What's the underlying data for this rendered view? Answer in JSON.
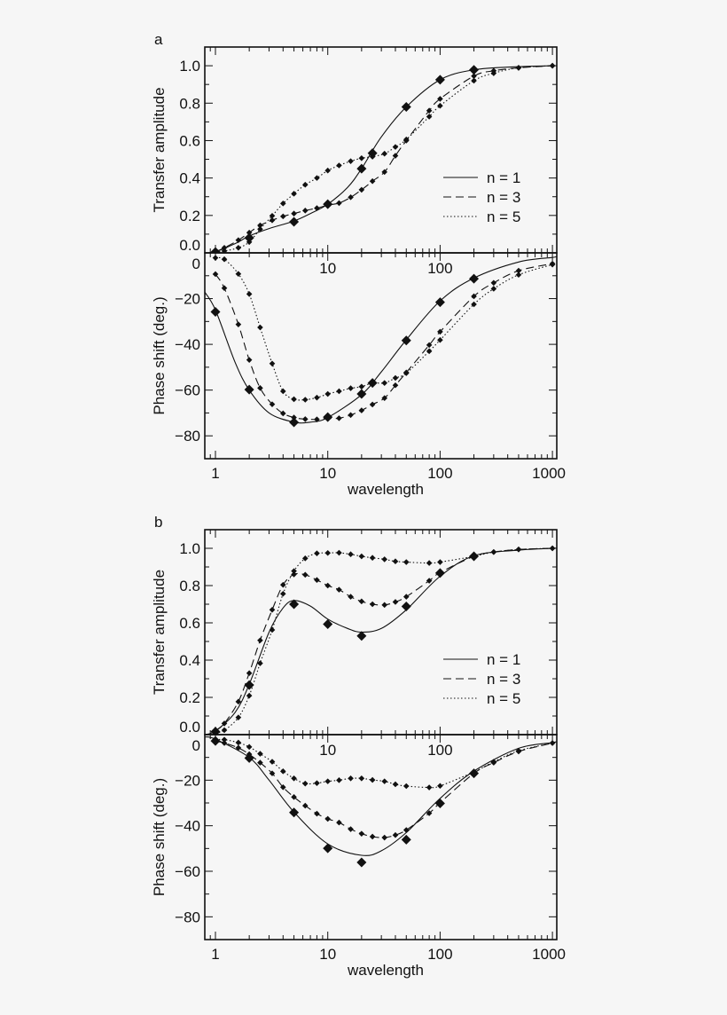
{
  "chart_data": [
    {
      "panel": "a",
      "type": "line",
      "xscale": "log",
      "xlabel": "",
      "ylabel": "Transfer amplitude",
      "xlim": [
        0.8,
        1100
      ],
      "ylim": [
        0,
        1.1
      ],
      "xticks": [
        "10",
        "100"
      ],
      "yticks": [
        "0.0",
        "0.2",
        "0.4",
        "0.6",
        "0.8",
        "1.0"
      ],
      "ytick_values": [
        0,
        0.2,
        0.4,
        0.6,
        0.8,
        1.0
      ],
      "legend": "bottom-right",
      "series": [
        {
          "name": "n = 1",
          "style": "solid",
          "x": [
            1,
            2,
            5,
            10,
            20,
            25,
            50,
            100,
            200
          ],
          "y": [
            0.005,
            0.08,
            0.166,
            0.26,
            0.45,
            0.533,
            0.78,
            0.925,
            0.978
          ],
          "curve_x": [
            0.8,
            1,
            1.5,
            2,
            3,
            5,
            7,
            10,
            15,
            20,
            30,
            50,
            100,
            200,
            500,
            1000,
            1100
          ],
          "curve_y": [
            0,
            0.005,
            0.05,
            0.09,
            0.13,
            0.17,
            0.21,
            0.26,
            0.35,
            0.45,
            0.62,
            0.78,
            0.925,
            0.978,
            0.995,
            1.0,
            1.0
          ]
        },
        {
          "name": "n = 3",
          "style": "dashed",
          "x": [
            1,
            1.2,
            1.6,
            2,
            2.5,
            3.2,
            4,
            5,
            6.3,
            8,
            10,
            12.6,
            16,
            20,
            25,
            32,
            40,
            50,
            80,
            100,
            200,
            300,
            500,
            1000
          ],
          "y": [
            0.005,
            0.027,
            0.068,
            0.108,
            0.147,
            0.174,
            0.195,
            0.21,
            0.226,
            0.239,
            0.255,
            0.266,
            0.297,
            0.337,
            0.383,
            0.432,
            0.519,
            0.6,
            0.76,
            0.823,
            0.945,
            0.973,
            0.989,
            1.0
          ]
        },
        {
          "name": "n = 5",
          "style": "dotted",
          "x": [
            1,
            1.2,
            1.6,
            2,
            2.5,
            3.2,
            4,
            5,
            6.3,
            8,
            10,
            12.6,
            16,
            20,
            25,
            32,
            40,
            50,
            80,
            100,
            200,
            300,
            500,
            1000
          ],
          "y": [
            0.005,
            0.01,
            0.027,
            0.058,
            0.127,
            0.198,
            0.264,
            0.316,
            0.364,
            0.4,
            0.44,
            0.467,
            0.49,
            0.506,
            0.514,
            0.53,
            0.566,
            0.606,
            0.728,
            0.786,
            0.92,
            0.96,
            0.989,
            1.0
          ]
        }
      ]
    },
    {
      "panel": "a",
      "type": "line",
      "xscale": "log",
      "xlabel": "wavelength",
      "ylabel": "Phase shift (deg.)",
      "xlim": [
        0.8,
        1100
      ],
      "ylim": [
        -90,
        0
      ],
      "xticks": [
        "1",
        "10",
        "100",
        "1000"
      ],
      "yticks": [
        "0",
        "−20",
        "−40",
        "−60",
        "−80"
      ],
      "ytick_values": [
        0,
        -20,
        -40,
        -60,
        -80
      ],
      "series": [
        {
          "name": "n = 1",
          "style": "solid",
          "x": [
            1,
            2,
            5,
            10,
            20,
            25,
            50,
            100,
            200
          ],
          "y": [
            -25.8,
            -59.8,
            -74.1,
            -71.8,
            -61.7,
            -56.9,
            -38.3,
            -21.6,
            -11.3
          ],
          "curve_x": [
            0.8,
            1,
            1.5,
            2,
            3,
            5,
            7,
            10,
            20,
            30,
            50,
            100,
            200,
            500,
            1000,
            1100
          ],
          "curve_y": [
            -17,
            -25,
            -48,
            -60,
            -70,
            -74,
            -74,
            -72,
            -62,
            -52,
            -38,
            -21,
            -11,
            -4,
            -2,
            -1.5
          ]
        },
        {
          "name": "n = 3",
          "style": "dashed",
          "x": [
            1,
            1.2,
            1.6,
            2,
            2.5,
            3.2,
            4,
            5,
            6.3,
            8,
            10,
            12.6,
            16,
            20,
            25,
            32,
            40,
            50,
            80,
            100,
            200,
            300,
            500,
            1000
          ],
          "y": [
            -9.3,
            -15.4,
            -31.3,
            -46.8,
            -59.1,
            -66.2,
            -70.2,
            -72,
            -72.7,
            -72.8,
            -72.4,
            -72.3,
            -70.9,
            -68.9,
            -66.3,
            -63.5,
            -57.9,
            -52.3,
            -40.3,
            -34.5,
            -19,
            -13.1,
            -7.8,
            -4.7
          ]
        },
        {
          "name": "n = 5",
          "style": "dotted",
          "x": [
            1,
            1.2,
            1.6,
            2,
            2.5,
            3.2,
            4,
            5,
            6.3,
            8,
            10,
            12.6,
            16,
            20,
            25,
            32,
            40,
            50,
            80,
            100,
            200,
            300,
            500,
            1000
          ],
          "y": [
            -2.2,
            -2.8,
            -9.2,
            -18,
            -32.6,
            -48.4,
            -60.5,
            -64,
            -64.2,
            -63.3,
            -61.7,
            -60.5,
            -59.2,
            -58.5,
            -56.9,
            -56.9,
            -54.7,
            -52.6,
            -43,
            -38.1,
            -22.5,
            -15.7,
            -9.6,
            -5.1
          ]
        }
      ]
    },
    {
      "panel": "b",
      "type": "line",
      "xscale": "log",
      "xlabel": "",
      "ylabel": "Transfer amplitude",
      "xlim": [
        0.8,
        1100
      ],
      "ylim": [
        0,
        1.1
      ],
      "xticks": [
        "10",
        "100"
      ],
      "yticks": [
        "0.0",
        "0.2",
        "0.4",
        "0.6",
        "0.8",
        "1.0"
      ],
      "ytick_values": [
        0,
        0.2,
        0.4,
        0.6,
        0.8,
        1.0
      ],
      "legend": "bottom-right",
      "series": [
        {
          "name": "n = 1",
          "style": "solid",
          "x": [
            1,
            2,
            5,
            10,
            20,
            50,
            100,
            200
          ],
          "y": [
            0.016,
            0.266,
            0.7,
            0.593,
            0.53,
            0.688,
            0.867,
            0.957
          ],
          "curve_x": [
            0.8,
            1,
            1.5,
            2,
            3,
            4,
            5,
            7,
            10,
            15,
            20,
            30,
            50,
            100,
            200,
            500,
            1000,
            1100
          ],
          "curve_y": [
            0,
            0.02,
            0.12,
            0.27,
            0.55,
            0.68,
            0.72,
            0.69,
            0.62,
            0.57,
            0.55,
            0.57,
            0.67,
            0.85,
            0.96,
            0.99,
            1.0,
            1.0
          ]
        },
        {
          "name": "n = 3",
          "style": "dashed",
          "x": [
            1,
            1.2,
            1.6,
            2,
            2.5,
            3.2,
            4,
            5,
            6.3,
            8,
            10,
            12.6,
            16,
            20,
            25,
            32,
            40,
            50,
            80,
            100,
            200,
            300,
            500,
            1000
          ],
          "y": [
            0.02,
            0.06,
            0.177,
            0.33,
            0.506,
            0.67,
            0.804,
            0.86,
            0.858,
            0.83,
            0.8,
            0.778,
            0.74,
            0.715,
            0.7,
            0.696,
            0.712,
            0.74,
            0.826,
            0.87,
            0.957,
            0.98,
            0.994,
            1.0
          ]
        },
        {
          "name": "n = 5",
          "style": "dotted",
          "x": [
            1,
            1.2,
            1.6,
            2,
            2.5,
            3.2,
            4,
            5,
            6.3,
            8,
            10,
            12.6,
            16,
            20,
            25,
            32,
            40,
            50,
            80,
            100,
            200,
            300,
            500,
            1000
          ],
          "y": [
            0.008,
            0.024,
            0.092,
            0.209,
            0.383,
            0.562,
            0.756,
            0.878,
            0.946,
            0.973,
            0.975,
            0.976,
            0.968,
            0.957,
            0.949,
            0.941,
            0.93,
            0.926,
            0.921,
            0.926,
            0.957,
            0.98,
            0.994,
            1.0
          ]
        }
      ]
    },
    {
      "panel": "b",
      "type": "line",
      "xscale": "log",
      "xlabel": "wavelength",
      "ylabel": "Phase shift (deg.)",
      "xlim": [
        0.8,
        1100
      ],
      "ylim": [
        -90,
        0
      ],
      "xticks": [
        "1",
        "10",
        "100",
        "1000"
      ],
      "yticks": [
        "0",
        "−20",
        "−40",
        "−60",
        "−80"
      ],
      "ytick_values": [
        0,
        -20,
        -40,
        -60,
        -80
      ],
      "series": [
        {
          "name": "n = 1",
          "style": "solid",
          "x": [
            1,
            2,
            5,
            10,
            20,
            50,
            100,
            200
          ],
          "y": [
            -2.8,
            -10.3,
            -34.2,
            -49.9,
            -56.1,
            -46.1,
            -30.2,
            -17
          ],
          "curve_x": [
            0.8,
            1,
            2,
            3,
            5,
            10,
            20,
            30,
            50,
            100,
            200,
            500,
            1000,
            1100
          ],
          "curve_y": [
            -1,
            -2,
            -10,
            -20,
            -34,
            -48,
            -53,
            -51,
            -43,
            -28,
            -16,
            -6,
            -3.5,
            -3
          ]
        },
        {
          "name": "n = 3",
          "style": "dashed",
          "x": [
            1,
            1.2,
            1.6,
            2,
            2.5,
            3.2,
            4,
            5,
            6.3,
            8,
            10,
            12.6,
            16,
            20,
            25,
            32,
            40,
            50,
            80,
            100,
            200,
            300,
            500,
            1000
          ],
          "y": [
            -2.8,
            -3.7,
            -5.8,
            -8.6,
            -12.3,
            -17,
            -23.1,
            -27.4,
            -31.2,
            -34.7,
            -37,
            -38.6,
            -41.5,
            -43.5,
            -44.8,
            -45.2,
            -44.1,
            -41.9,
            -34.5,
            -29.9,
            -17,
            -12.3,
            -7.4,
            -3.7
          ]
        },
        {
          "name": "n = 5",
          "style": "dotted",
          "x": [
            1,
            1.2,
            1.6,
            2,
            2.5,
            3.2,
            4,
            5,
            6.3,
            8,
            10,
            12.6,
            16,
            20,
            25,
            32,
            40,
            50,
            80,
            100,
            200,
            300,
            500,
            1000
          ],
          "y": [
            -2.2,
            -2.2,
            -3.5,
            -5.4,
            -8.4,
            -11.9,
            -16.1,
            -19.2,
            -21.5,
            -21.3,
            -20.5,
            -20,
            -19.2,
            -19.2,
            -19.9,
            -20.5,
            -21.8,
            -22.6,
            -23.2,
            -22.5,
            -16.4,
            -11.9,
            -7.1,
            -3.7
          ]
        }
      ]
    }
  ],
  "panel_labels": [
    "a",
    "b"
  ]
}
